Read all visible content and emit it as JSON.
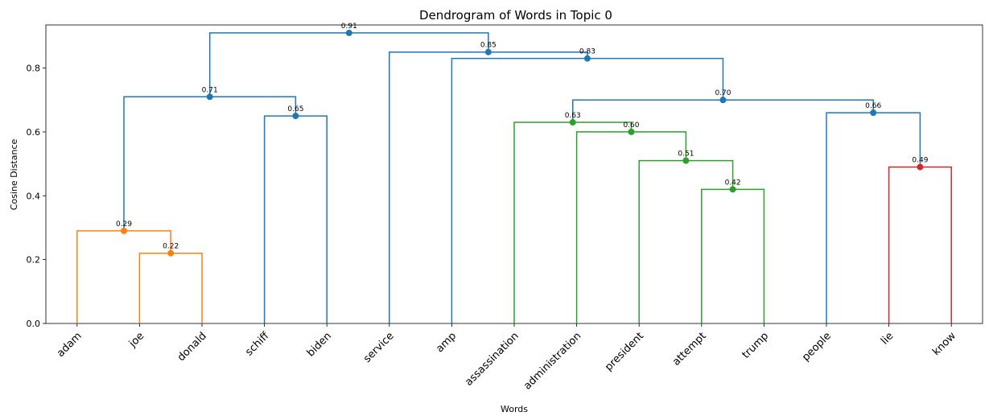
{
  "chart_data": {
    "type": "dendrogram",
    "title": "Dendrogram of Words in Topic 0",
    "xlabel": "Words",
    "ylabel": "Cosine Distance",
    "ylim": [
      0,
      0.935
    ],
    "yticks": [
      "0.0",
      "0.2",
      "0.4",
      "0.6",
      "0.8"
    ],
    "leaves": [
      "adam",
      "joe",
      "donald",
      "schiff",
      "biden",
      "service",
      "amp",
      "assassination",
      "administration",
      "president",
      "attempt",
      "trump",
      "people",
      "lie",
      "know"
    ],
    "colors": {
      "orange": "#ff7f0e",
      "green": "#2ca02c",
      "red": "#d62728",
      "blue": "#1f77b4"
    },
    "merges": [
      {
        "id": "m022",
        "left": "leaf:1",
        "right": "leaf:2",
        "height": 0.22,
        "label": "0.22",
        "color": "orange"
      },
      {
        "id": "m029",
        "left": "leaf:0",
        "right": "m022",
        "height": 0.29,
        "label": "0.29",
        "color": "orange"
      },
      {
        "id": "m065",
        "left": "leaf:3",
        "right": "leaf:4",
        "height": 0.65,
        "label": "0.65",
        "color": "blue"
      },
      {
        "id": "m071",
        "left": "m029",
        "right": "m065",
        "height": 0.71,
        "label": "0.71",
        "color": "blue"
      },
      {
        "id": "m042",
        "left": "leaf:10",
        "right": "leaf:11",
        "height": 0.42,
        "label": "0.42",
        "color": "green"
      },
      {
        "id": "m051",
        "left": "leaf:9",
        "right": "m042",
        "height": 0.51,
        "label": "0.51",
        "color": "green"
      },
      {
        "id": "m060",
        "left": "leaf:8",
        "right": "m051",
        "height": 0.6,
        "label": "0.60",
        "color": "green"
      },
      {
        "id": "m063",
        "left": "leaf:7",
        "right": "m060",
        "height": 0.63,
        "label": "0.63",
        "color": "green"
      },
      {
        "id": "m049",
        "left": "leaf:13",
        "right": "leaf:14",
        "height": 0.49,
        "label": "0.49",
        "color": "red"
      },
      {
        "id": "m066",
        "left": "leaf:12",
        "right": "m049",
        "height": 0.66,
        "label": "0.66",
        "color": "blue"
      },
      {
        "id": "m070",
        "left": "m063",
        "right": "m066",
        "height": 0.7,
        "label": "0.70",
        "color": "blue"
      },
      {
        "id": "m083",
        "left": "leaf:6",
        "right": "m070",
        "height": 0.83,
        "label": "0.83",
        "color": "blue"
      },
      {
        "id": "m085",
        "left": "leaf:5",
        "right": "m083",
        "height": 0.85,
        "label": "0.85",
        "color": "blue"
      },
      {
        "id": "m091",
        "left": "m071",
        "right": "m085",
        "height": 0.91,
        "label": "0.91",
        "color": "blue"
      }
    ]
  }
}
